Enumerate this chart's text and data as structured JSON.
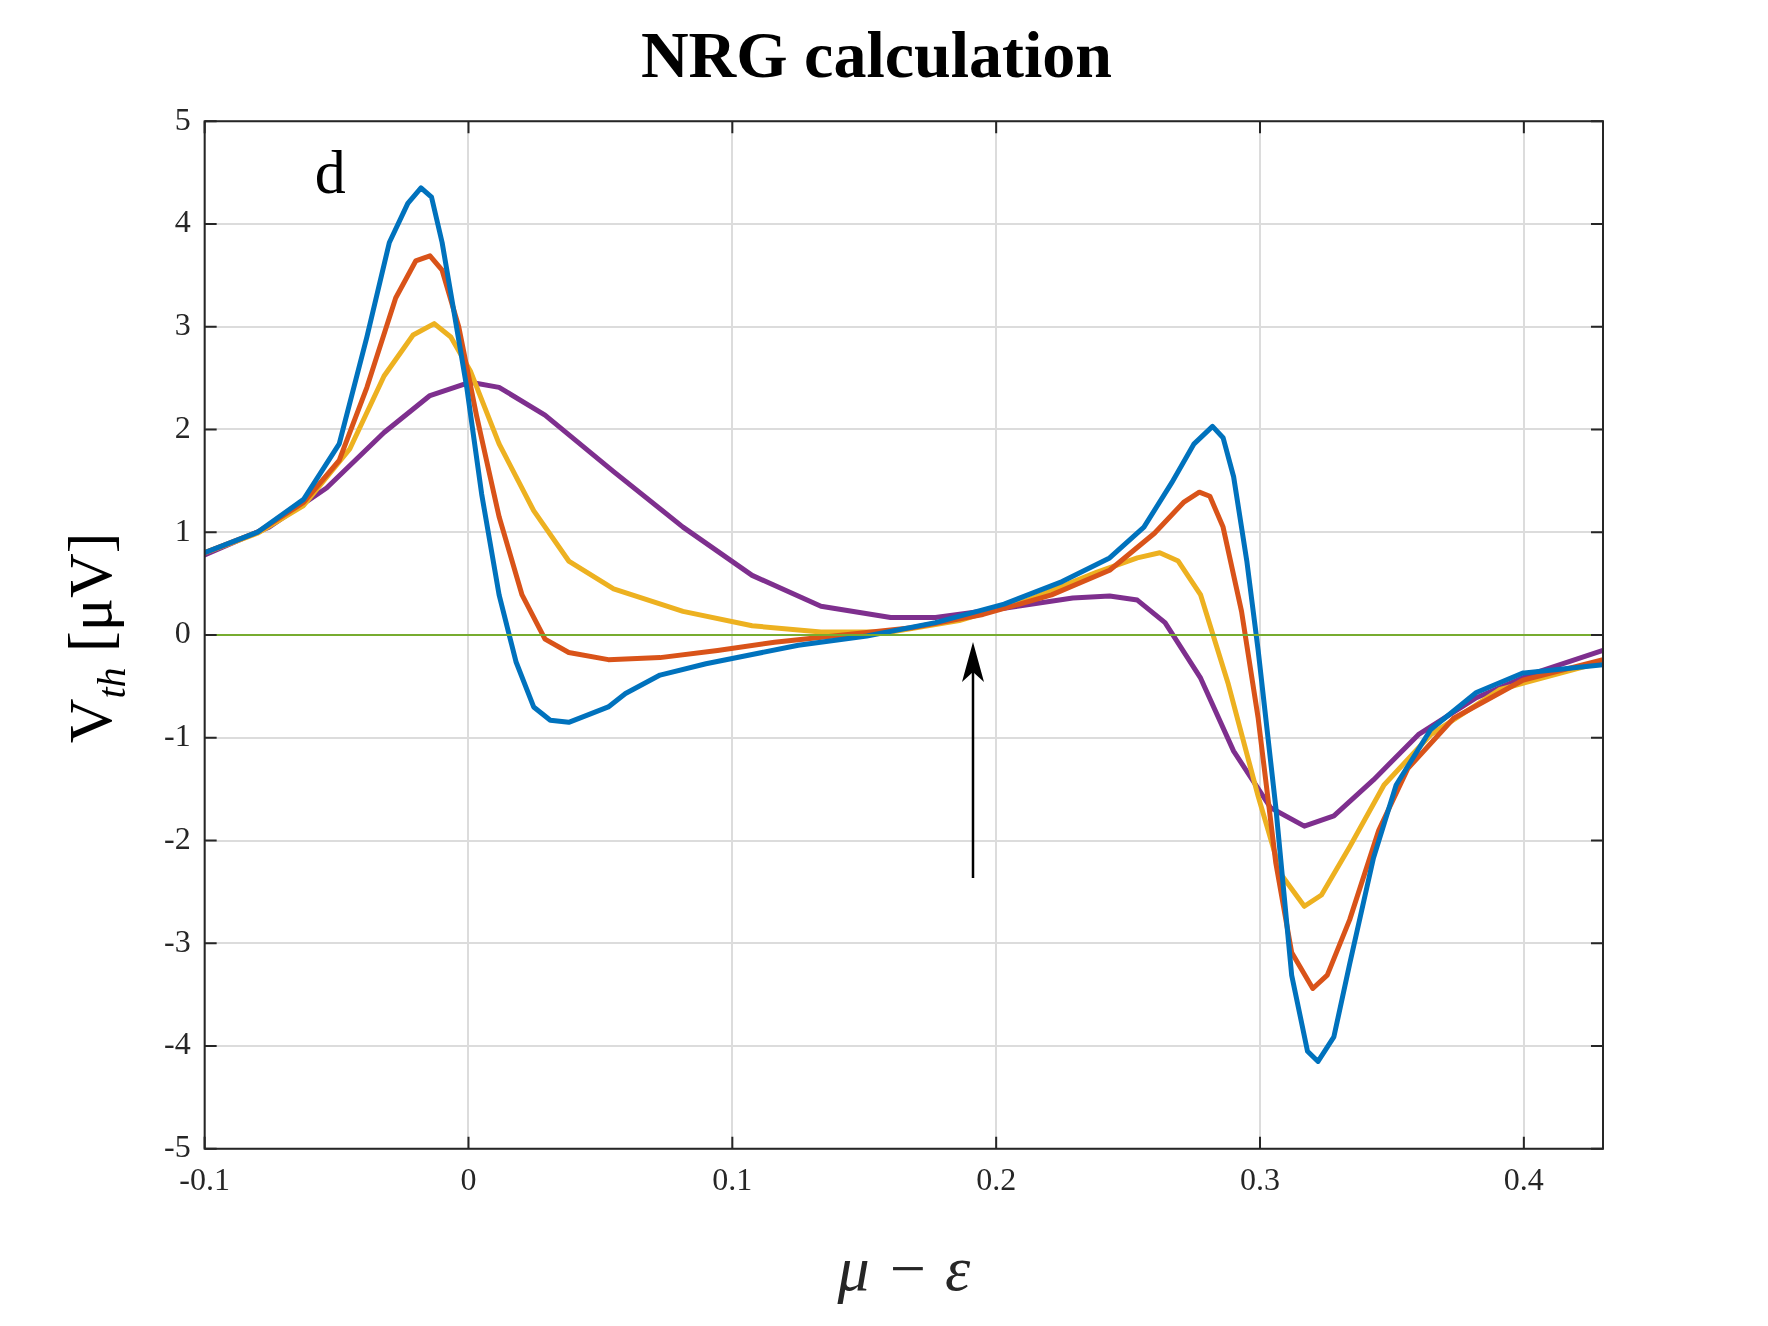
{
  "chart_data": {
    "type": "line",
    "title": "NRG calculation",
    "xlabel": "μ − ε",
    "ylabel": "V$_{th}$ [μV]",
    "annotations": [
      "d"
    ],
    "xlim": [
      -0.1,
      0.43
    ],
    "xticks": [
      -0.1,
      0,
      0.1,
      0.2,
      0.3,
      0.4
    ],
    "ylim": [
      -5,
      5
    ],
    "yticks": [
      -5,
      -4,
      -3,
      -2,
      -1,
      0,
      1,
      2,
      3,
      4,
      5
    ],
    "grid": true,
    "legend": false,
    "marker": "none",
    "line_style": "solid",
    "ref_lines": [
      {
        "axis": "y",
        "value": 0,
        "color": "#77ac30"
      }
    ],
    "series": [
      {
        "color": "#0072bd",
        "x": [
          -0.1,
          -0.08,
          -0.0625,
          -0.049,
          -0.0385,
          -0.03,
          -0.023,
          -0.018,
          -0.014,
          -0.01,
          -0.006,
          -0.0006,
          0.005,
          0.0116,
          0.018,
          0.0247,
          0.031,
          0.038,
          0.046,
          0.053,
          0.0595,
          0.0726,
          0.09,
          0.1075,
          0.125,
          0.151,
          0.177,
          0.203,
          0.225,
          0.243,
          0.256,
          0.2665,
          0.275,
          0.282,
          0.286,
          0.29,
          0.295,
          0.2993,
          0.306,
          0.312,
          0.318,
          0.322,
          0.328,
          0.334,
          0.343,
          0.3516,
          0.3647,
          0.382,
          0.3996,
          0.43
        ],
        "values": [
          0.8,
          1.0,
          1.32,
          1.86,
          2.9,
          3.82,
          4.2,
          4.35,
          4.26,
          3.82,
          3.22,
          2.4,
          1.37,
          0.39,
          -0.26,
          -0.7,
          -0.83,
          -0.85,
          -0.77,
          -0.7,
          -0.57,
          -0.39,
          -0.28,
          -0.19,
          -0.1,
          -0.01,
          0.12,
          0.3,
          0.52,
          0.75,
          1.05,
          1.48,
          1.86,
          2.03,
          1.92,
          1.54,
          0.72,
          -0.15,
          -1.68,
          -3.31,
          -4.05,
          -4.15,
          -3.91,
          -3.2,
          -2.17,
          -1.46,
          -0.92,
          -0.56,
          -0.37,
          -0.29
        ]
      },
      {
        "color": "#d95319",
        "x": [
          -0.1,
          -0.08,
          -0.0625,
          -0.049,
          -0.0385,
          -0.0276,
          -0.02,
          -0.0146,
          -0.01,
          -0.0037,
          0.003,
          0.0116,
          0.0203,
          0.029,
          0.038,
          0.053,
          0.0726,
          0.0944,
          0.116,
          0.142,
          0.168,
          0.195,
          0.221,
          0.243,
          0.26,
          0.271,
          0.277,
          0.281,
          0.286,
          0.293,
          0.2993,
          0.306,
          0.312,
          0.32,
          0.3255,
          0.334,
          0.345,
          0.356,
          0.3734,
          0.3996,
          0.43
        ],
        "values": [
          0.8,
          1.0,
          1.29,
          1.7,
          2.41,
          3.28,
          3.64,
          3.69,
          3.55,
          3.0,
          2.14,
          1.15,
          0.39,
          -0.04,
          -0.17,
          -0.24,
          -0.22,
          -0.15,
          -0.07,
          0,
          0.07,
          0.2,
          0.39,
          0.63,
          0.99,
          1.29,
          1.39,
          1.35,
          1.05,
          0.23,
          -0.81,
          -2.22,
          -3.09,
          -3.44,
          -3.31,
          -2.77,
          -1.9,
          -1.3,
          -0.81,
          -0.44,
          -0.24
        ]
      },
      {
        "color": "#edb120",
        "x": [
          -0.1,
          -0.08,
          -0.0625,
          -0.045,
          -0.032,
          -0.021,
          -0.013,
          -0.0067,
          0.0007,
          0.0116,
          0.0247,
          0.038,
          0.055,
          0.0813,
          0.1075,
          0.1336,
          0.16,
          0.186,
          0.212,
          0.238,
          0.2535,
          0.262,
          0.269,
          0.2775,
          0.288,
          0.2993,
          0.308,
          0.3168,
          0.3233,
          0.334,
          0.347,
          0.3647,
          0.391,
          0.43
        ],
        "values": [
          0.8,
          0.99,
          1.26,
          1.81,
          2.52,
          2.92,
          3.03,
          2.9,
          2.57,
          1.86,
          1.21,
          0.72,
          0.45,
          0.23,
          0.09,
          0.03,
          0.03,
          0.14,
          0.34,
          0.61,
          0.75,
          0.8,
          0.72,
          0.39,
          -0.48,
          -1.57,
          -2.33,
          -2.64,
          -2.53,
          -2.06,
          -1.46,
          -0.97,
          -0.53,
          -0.26
        ]
      },
      {
        "color": "#7e2f8e",
        "x": [
          -0.1,
          -0.0756,
          -0.0538,
          -0.032,
          -0.0146,
          0.0007,
          0.0116,
          0.029,
          0.055,
          0.0813,
          0.1075,
          0.1336,
          0.16,
          0.177,
          0.203,
          0.229,
          0.243,
          0.2535,
          0.264,
          0.2775,
          0.29,
          0.304,
          0.3168,
          0.328,
          0.343,
          0.36,
          0.382,
          0.404,
          0.43
        ],
        "values": [
          0.78,
          1.05,
          1.43,
          1.97,
          2.33,
          2.46,
          2.41,
          2.14,
          1.59,
          1.05,
          0.58,
          0.28,
          0.17,
          0.17,
          0.26,
          0.36,
          0.38,
          0.34,
          0.12,
          -0.42,
          -1.13,
          -1.68,
          -1.86,
          -1.76,
          -1.41,
          -0.97,
          -0.61,
          -0.37,
          -0.15
        ]
      }
    ]
  }
}
